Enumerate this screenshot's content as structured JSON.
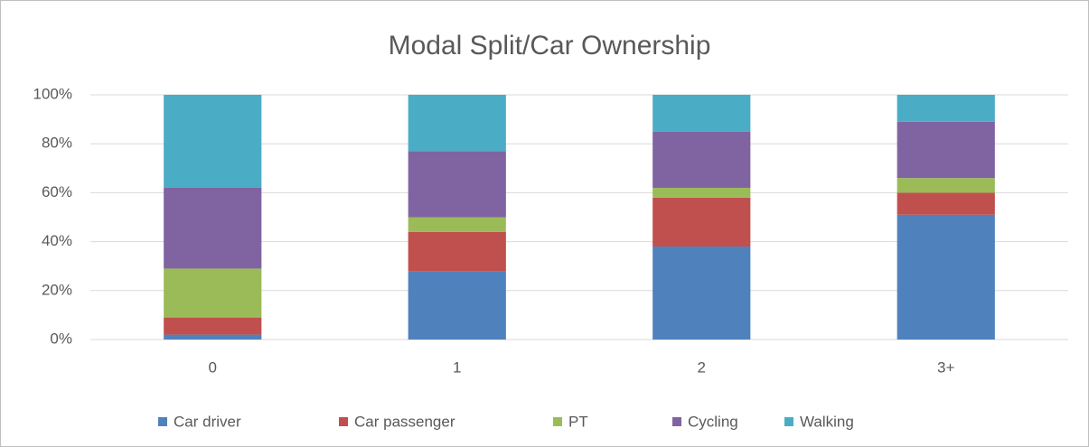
{
  "chart_data": {
    "type": "stacked_bar",
    "title": "Modal Split/Car Ownership",
    "categories": [
      "0",
      "1",
      "2",
      "3+"
    ],
    "series": [
      {
        "name": "Car driver",
        "color": "#4f81bd",
        "values": [
          2,
          28,
          38,
          51
        ]
      },
      {
        "name": "Car passenger",
        "color": "#c0504d",
        "values": [
          7,
          16,
          20,
          9
        ]
      },
      {
        "name": "PT",
        "color": "#9bbb59",
        "values": [
          20,
          6,
          4,
          6
        ]
      },
      {
        "name": "Cycling",
        "color": "#8064a2",
        "values": [
          33,
          27,
          23,
          23
        ]
      },
      {
        "name": "Walking",
        "color": "#4bacc6",
        "values": [
          38,
          23,
          15,
          11
        ]
      }
    ],
    "ylim": [
      0,
      100
    ],
    "yticks": [
      {
        "value": 0,
        "label": "0%"
      },
      {
        "value": 20,
        "label": "20%"
      },
      {
        "value": 40,
        "label": "40%"
      },
      {
        "value": 60,
        "label": "60%"
      },
      {
        "value": 80,
        "label": "80%"
      },
      {
        "value": 100,
        "label": "100%"
      }
    ],
    "grid": true,
    "legend": "bottom"
  }
}
